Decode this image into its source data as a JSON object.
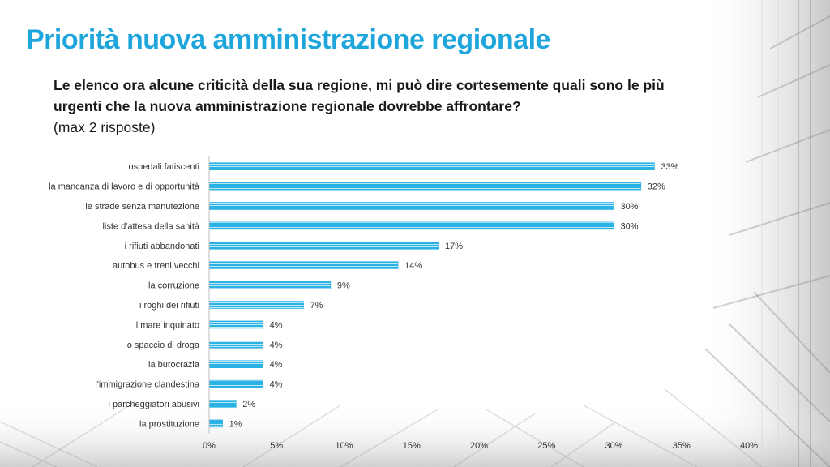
{
  "slide": {
    "title": "Priorità nuova amministrazione regionale",
    "question_main": "Le elenco ora alcune criticità della sua regione, mi può dire cortesemente quali sono le più urgenti che la nuova amministrazione regionale dovrebbe affrontare?",
    "question_note": "(max 2 risposte)"
  },
  "colors": {
    "accent": "#1ea6dc",
    "bar": "#29b2e3",
    "bar_stripe": "#bfe8f7"
  },
  "chart_data": {
    "type": "bar",
    "orientation": "horizontal",
    "categories": [
      "ospedali fatiscenti",
      "la mancanza di lavoro e di opportunità",
      "le strade senza manutezione",
      "liste d'attesa della sanità",
      "i rifiuti abbandonati",
      "autobus e treni vecchi",
      "la corruzione",
      "i roghi dei rifiuti",
      "il mare inquinato",
      "lo spaccio di droga",
      "la burocrazia",
      "l'immigrazione clandestina",
      "i parcheggiatori abusivi",
      "la prostituzione"
    ],
    "values": [
      33,
      32,
      30,
      30,
      17,
      14,
      9,
      7,
      4,
      4,
      4,
      4,
      2,
      1
    ],
    "value_labels": [
      "33%",
      "32%",
      "30%",
      "30%",
      "17%",
      "14%",
      "9%",
      "7%",
      "4%",
      "4%",
      "4%",
      "4%",
      "2%",
      "1%"
    ],
    "xlim": [
      0,
      40
    ],
    "xticks": [
      0,
      5,
      10,
      15,
      20,
      25,
      30,
      35,
      40
    ],
    "xtick_labels": [
      "0%",
      "5%",
      "10%",
      "15%",
      "20%",
      "25%",
      "30%",
      "35%",
      "40%"
    ],
    "grid": false,
    "legend": "none"
  }
}
